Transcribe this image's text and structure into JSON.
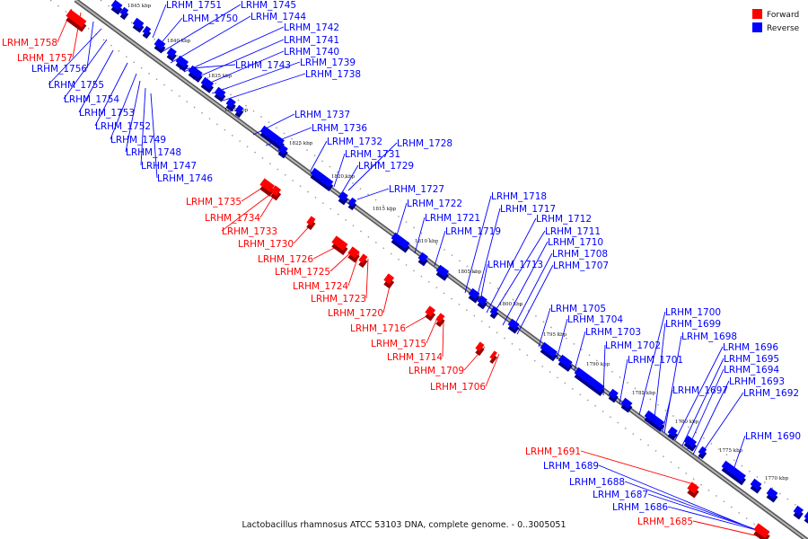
{
  "caption": "Lactobacillus rhamnosus ATCC 53103 DNA, complete genome. - 0..3005051",
  "legend": [
    {
      "label": "Forward",
      "color": "#ff0000"
    },
    {
      "label": "Reverse",
      "color": "#0000ff"
    }
  ],
  "colors": {
    "forward": "#ff0000",
    "reverse": "#0000ff",
    "backbone": "#888888"
  },
  "scale_ticks": [
    "1845 kbp",
    "1840 kbp",
    "1835 kbp",
    "1830 kbp",
    "1825 kbp",
    "1820 kbp",
    "1815 kbp",
    "1810 kbp",
    "1805 kbp",
    "1800 kbp",
    "1795 kbp",
    "1790 kbp",
    "1785 kbp",
    "1780 kbp",
    "1775 kbp",
    "1770 kbp"
  ],
  "reverse_genes": [
    "LRHM_1751",
    "LRHM_1745",
    "LRHM_1750",
    "LRHM_1744",
    "LRHM_1742",
    "LRHM_1741",
    "LRHM_1740",
    "LRHM_1743",
    "LRHM_1739",
    "LRHM_1738",
    "LRHM_1756",
    "LRHM_1755",
    "LRHM_1754",
    "LRHM_1753",
    "LRHM_1752",
    "LRHM_1749",
    "LRHM_1748",
    "LRHM_1747",
    "LRHM_1746",
    "LRHM_1737",
    "LRHM_1736",
    "LRHM_1732",
    "LRHM_1728",
    "LRHM_1731",
    "LRHM_1729",
    "LRHM_1727",
    "LRHM_1722",
    "LRHM_1721",
    "LRHM_1719",
    "LRHM_1718",
    "LRHM_1717",
    "LRHM_1712",
    "LRHM_1711",
    "LRHM_1710",
    "LRHM_1713",
    "LRHM_1708",
    "LRHM_1707",
    "LRHM_1705",
    "LRHM_1704",
    "LRHM_1703",
    "LRHM_1702",
    "LRHM_1701",
    "LRHM_1700",
    "LRHM_1699",
    "LRHM_1698",
    "LRHM_1696",
    "LRHM_1695",
    "LRHM_1694",
    "LRHM_1693",
    "LRHM_1697",
    "LRHM_1692",
    "LRHM_1690",
    "LRHM_1689",
    "LRHM_1688",
    "LRHM_1687",
    "LRHM_1686"
  ],
  "forward_genes": [
    "LRHM_1758",
    "LRHM_1757",
    "LRHM_1735",
    "LRHM_1734",
    "LRHM_1733",
    "LRHM_1730",
    "LRHM_1726",
    "LRHM_1725",
    "LRHM_1724",
    "LRHM_1723",
    "LRHM_1720",
    "LRHM_1716",
    "LRHM_1715",
    "LRHM_1714",
    "LRHM_1709",
    "LRHM_1706",
    "LRHM_1691",
    "LRHM_1685"
  ]
}
